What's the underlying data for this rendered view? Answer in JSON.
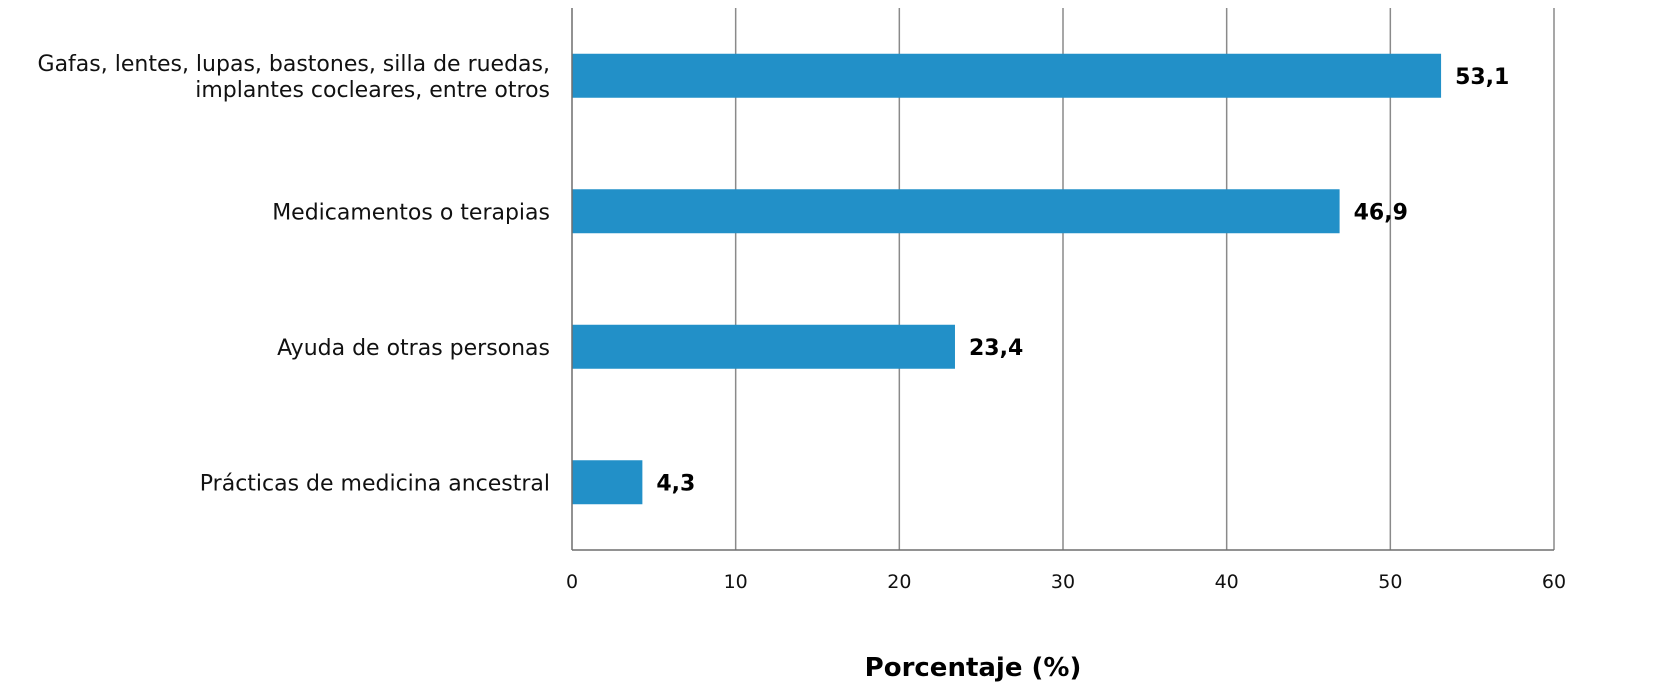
{
  "chart_data": {
    "type": "bar",
    "orientation": "horizontal",
    "categories": [
      [
        "Gafas, lentes, lupas, bastones, silla de ruedas,",
        "implantes cocleares, entre otros"
      ],
      [
        "Medicamentos o terapias"
      ],
      [
        "Ayuda de otras personas"
      ],
      [
        "Prácticas de medicina ancestral"
      ]
    ],
    "values": [
      53.1,
      46.9,
      23.4,
      4.3
    ],
    "data_labels": [
      "53,1",
      "46,9",
      "23,4",
      "4,3"
    ],
    "xlabel": "Porcentaje (%)",
    "ylabel": "",
    "xlim": [
      0,
      60
    ],
    "xticks": [
      0,
      10,
      20,
      30,
      40,
      50,
      60
    ],
    "grid": "vertical",
    "legend": "none",
    "colors": {
      "bar": "#2290c8",
      "gridline": "#8a8a8a",
      "axis": "#6f6f6f"
    }
  }
}
